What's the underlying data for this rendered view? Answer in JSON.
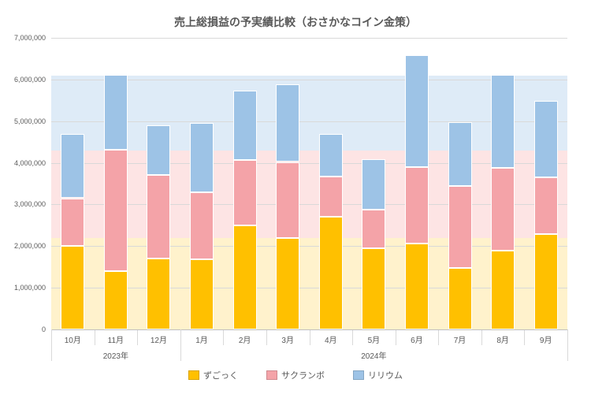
{
  "title": "売上総損益の予実績比較（おさかなコイン金策）",
  "title_fontsize": 14,
  "title_color": "#595959",
  "background_color": "#ffffff",
  "grid_color": "#d9d9d9",
  "axis_label_color": "#595959",
  "axis_label_fontsize": 10,
  "y_axis": {
    "min": 0,
    "max": 7000000,
    "tick_step": 1000000,
    "tick_format": "comma"
  },
  "bands": [
    {
      "series_index": 0,
      "value": 2200000
    },
    {
      "series_index": 1,
      "value": 2100000
    },
    {
      "series_index": 2,
      "value": 1800000
    }
  ],
  "series": [
    {
      "name": "ずごっく",
      "bar_color": "#ffc000",
      "band_color": "#fff2cc"
    },
    {
      "name": "サクランボ",
      "bar_color": "#f4a3a8",
      "band_color": "#fde4e4"
    },
    {
      "name": "リリウム",
      "bar_color": "#9dc3e6",
      "band_color": "#deebf7"
    }
  ],
  "year_groups": [
    {
      "label": "2023年",
      "start": 0,
      "end": 2
    },
    {
      "label": "2024年",
      "start": 3,
      "end": 11
    }
  ],
  "categories": [
    "10月",
    "11月",
    "12月",
    "1月",
    "2月",
    "3月",
    "4月",
    "5月",
    "6月",
    "7月",
    "8月",
    "9月"
  ],
  "data": [
    [
      2000000,
      1150000,
      1550000
    ],
    [
      1400000,
      2920000,
      1800000
    ],
    [
      1700000,
      2000000,
      1200000
    ],
    [
      1680000,
      1620000,
      1650000
    ],
    [
      2500000,
      1560000,
      1680000
    ],
    [
      2200000,
      1820000,
      1870000
    ],
    [
      2700000,
      970000,
      1030000
    ],
    [
      1950000,
      930000,
      1200000
    ],
    [
      2070000,
      1830000,
      2690000
    ],
    [
      1480000,
      1960000,
      1540000
    ],
    [
      1900000,
      1980000,
      2230000
    ],
    [
      2280000,
      1370000,
      1840000
    ]
  ],
  "bar_width_ratio": 0.55,
  "legend_position": "bottom"
}
